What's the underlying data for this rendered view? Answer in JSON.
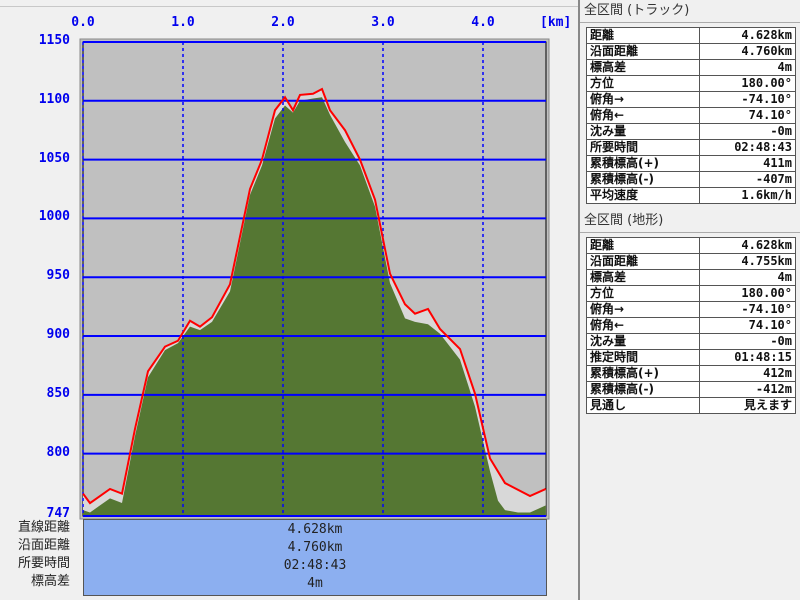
{
  "chart_data": {
    "type": "area",
    "x_unit_label": "[km]",
    "xlim": [
      0,
      4.628
    ],
    "ylim": [
      747,
      1150
    ],
    "x_ticks": [
      "0.0",
      "1.0",
      "2.0",
      "3.0",
      "4.0"
    ],
    "y_ticks": [
      "1150",
      "1100",
      "1050",
      "1000",
      "950",
      "900",
      "850",
      "800",
      "747"
    ],
    "grid": true,
    "colors": {
      "terrain": "#557733",
      "track": "#ff0000",
      "grid": "#0000ff",
      "background": "#c0c0c0",
      "gap": "#d8d8d8"
    },
    "series": [
      {
        "key": "track",
        "x": [
          0,
          0.07,
          0.17,
          0.27,
          0.39,
          0.52,
          0.65,
          0.82,
          0.95,
          1.07,
          1.17,
          1.29,
          1.47,
          1.67,
          1.79,
          1.92,
          2.02,
          2.1,
          2.17,
          2.3,
          2.39,
          2.47,
          2.62,
          2.77,
          2.92,
          3.07,
          3.22,
          3.32,
          3.45,
          3.57,
          3.77,
          3.92,
          4.07,
          4.22,
          4.47,
          4.628
        ],
        "y": [
          766,
          758,
          764,
          770,
          766,
          821,
          870,
          891,
          896,
          913,
          908,
          916,
          944,
          1025,
          1050,
          1092,
          1103,
          1092,
          1105,
          1106,
          1110,
          1092,
          1075,
          1050,
          1016,
          953,
          927,
          919,
          923,
          906,
          889,
          851,
          796,
          775,
          764,
          770
        ]
      },
      {
        "key": "terrain",
        "x": [
          0,
          0.07,
          0.17,
          0.27,
          0.39,
          0.52,
          0.65,
          0.82,
          0.95,
          1.07,
          1.17,
          1.29,
          1.47,
          1.67,
          1.79,
          1.92,
          2.02,
          2.1,
          2.17,
          2.3,
          2.39,
          2.47,
          2.62,
          2.77,
          2.92,
          3.07,
          3.22,
          3.32,
          3.45,
          3.57,
          3.77,
          3.92,
          4.07,
          4.15,
          4.22,
          4.35,
          4.47,
          4.628
        ],
        "y": [
          752,
          750,
          756,
          762,
          758,
          815,
          865,
          888,
          894,
          908,
          905,
          912,
          938,
          1020,
          1045,
          1085,
          1096,
          1090,
          1100,
          1102,
          1103,
          1088,
          1065,
          1045,
          1010,
          945,
          915,
          912,
          910,
          902,
          880,
          840,
          785,
          760,
          752,
          750,
          750,
          756
        ]
      }
    ]
  },
  "summary": {
    "labels": [
      "直線距離",
      "沿面距離",
      "所要時間",
      "標高差"
    ],
    "values": [
      "4.628km",
      "4.760km",
      "02:48:43",
      "4m"
    ]
  },
  "track_panel": {
    "title": "全区間 (トラック)",
    "rows": [
      [
        "距離",
        "4.628km"
      ],
      [
        "沿面距離",
        "4.760km"
      ],
      [
        "標高差",
        "4m"
      ],
      [
        "方位",
        "180.00°"
      ],
      [
        "俯角→",
        "-74.10°"
      ],
      [
        "俯角←",
        "74.10°"
      ],
      [
        "沈み量",
        "-0m"
      ],
      [
        "所要時間",
        "02:48:43"
      ],
      [
        "累積標高(+)",
        "411m"
      ],
      [
        "累積標高(-)",
        "-407m"
      ],
      [
        "平均速度",
        "1.6km/h"
      ]
    ]
  },
  "terrain_panel": {
    "title": "全区間 (地形)",
    "rows": [
      [
        "距離",
        "4.628km"
      ],
      [
        "沿面距離",
        "4.755km"
      ],
      [
        "標高差",
        "4m"
      ],
      [
        "方位",
        "180.00°"
      ],
      [
        "俯角→",
        "-74.10°"
      ],
      [
        "俯角←",
        "74.10°"
      ],
      [
        "沈み量",
        "-0m"
      ],
      [
        "推定時間",
        "01:48:15"
      ],
      [
        "累積標高(+)",
        "412m"
      ],
      [
        "累積標高(-)",
        "-412m"
      ],
      [
        "見通し",
        "見えます"
      ]
    ]
  }
}
